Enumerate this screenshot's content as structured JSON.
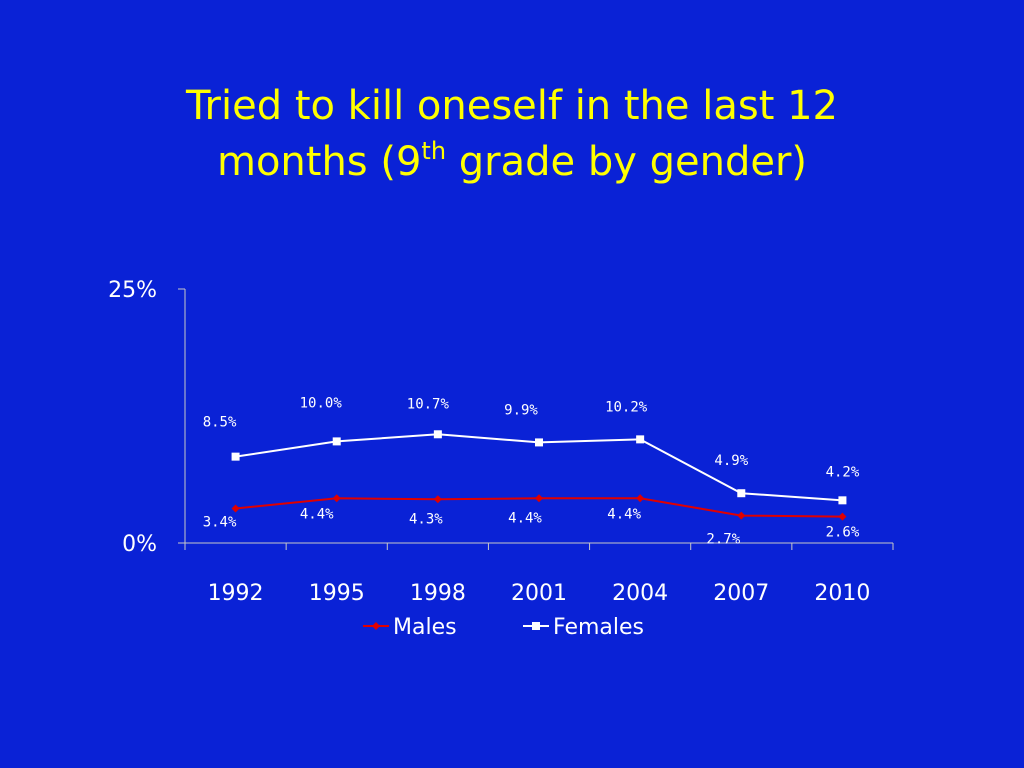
{
  "slide": {
    "title_line1": "Tried to kill oneself in the last 12",
    "title_line2_a": "months (9",
    "title_line2_sup": "th",
    "title_line2_b": " grade by gender)"
  },
  "colors": {
    "background": "#0a22d6",
    "title": "#ffff00",
    "axis_text": "#ffffff",
    "males_line": "#e00000",
    "females_line": "#ffffff"
  },
  "chart_data": {
    "type": "line",
    "categories": [
      "1992",
      "1995",
      "1998",
      "2001",
      "2004",
      "2007",
      "2010"
    ],
    "series": [
      {
        "name": "Males",
        "values": [
          3.4,
          4.4,
          4.3,
          4.4,
          4.4,
          2.7,
          2.6
        ],
        "labels": [
          "3.4%",
          "4.4%",
          "4.3%",
          "4.4%",
          "4.4%",
          "2.7%",
          "2.6%"
        ],
        "marker": "diamond"
      },
      {
        "name": "Females",
        "values": [
          8.5,
          10.0,
          10.7,
          9.9,
          10.2,
          4.9,
          4.2
        ],
        "labels": [
          "8.5%",
          "10.0%",
          "10.7%",
          "9.9%",
          "10.2%",
          "4.9%",
          "4.2%"
        ],
        "marker": "square"
      }
    ],
    "y_ticks": [
      "25%",
      "0%"
    ],
    "ylim": [
      0,
      25
    ],
    "grid": false,
    "legend_position": "bottom"
  }
}
